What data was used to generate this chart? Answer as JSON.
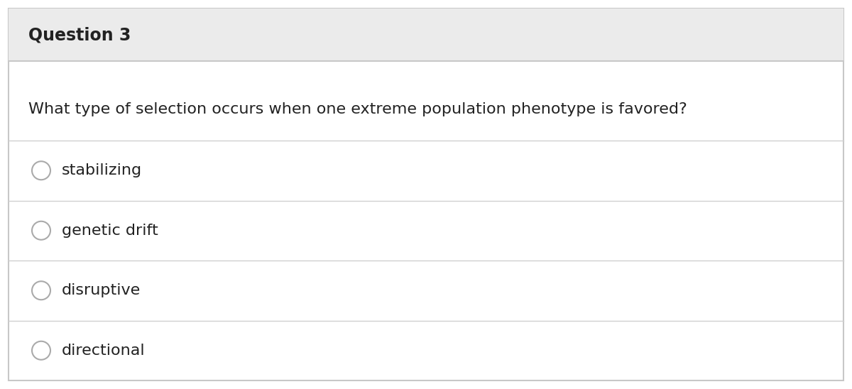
{
  "title": "Question 3",
  "question": "What type of selection occurs when one extreme population phenotype is favored?",
  "options": [
    "stabilizing",
    "genetic drift",
    "disruptive",
    "directional"
  ],
  "bg_color": "#ffffff",
  "header_bg": "#ebebeb",
  "border_color": "#c8c8c8",
  "text_color": "#222222",
  "title_fontsize": 17,
  "question_fontsize": 16,
  "option_fontsize": 16,
  "circle_color": "#aaaaaa",
  "line_color": "#d0d0d0",
  "fig_width": 12.0,
  "fig_height": 5.48,
  "dpi": 100
}
